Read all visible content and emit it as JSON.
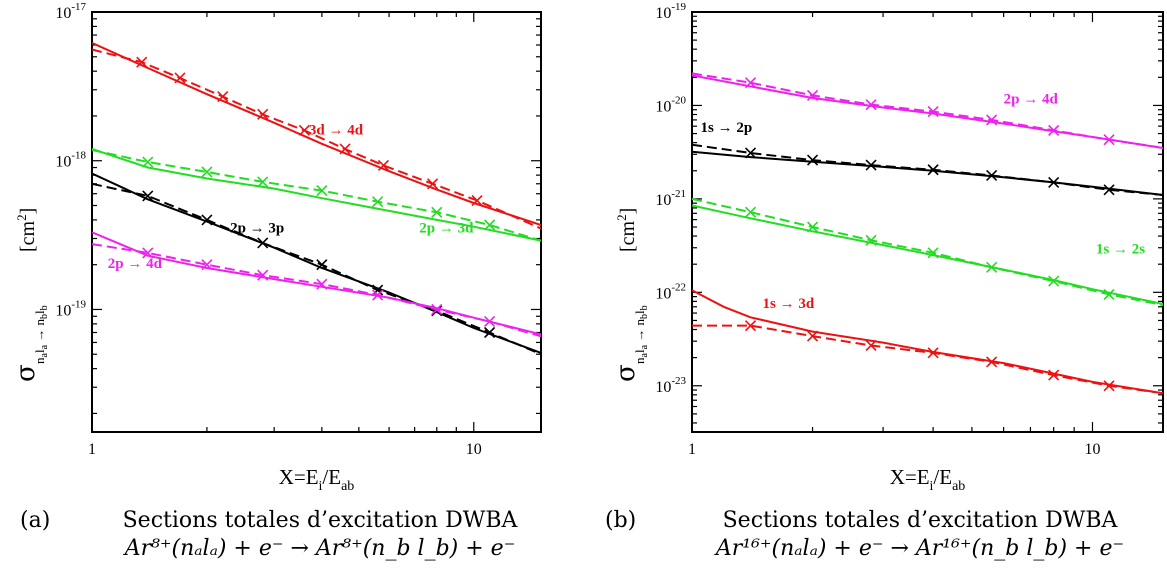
{
  "charts": [
    {
      "id": "a",
      "caption_letter": "(a)",
      "caption_line1": "Sections totales d’excitation DWBA",
      "caption_line2": "Ar⁸⁺(nₐlₐ) + e⁻ → Ar⁸⁺(n_b l_b) + e⁻",
      "xlabel_main": "X=E",
      "xlabel_sub1": "i",
      "xlabel_mid": "/E",
      "xlabel_sub2": "ab",
      "ylabel_sigma": "σ",
      "ylabel_sub": "n",
      "ylabel_unit": "[cm",
      "ylabel_unit_sup": "2",
      "ylabel_unit_end": "]",
      "x_tick_labels": [
        "1",
        "10"
      ],
      "y_tick_labels": [
        {
          "base": "10",
          "exp": "-17"
        },
        {
          "base": "10",
          "exp": "-18"
        },
        {
          "base": "10",
          "exp": "-19"
        }
      ]
    },
    {
      "id": "b",
      "caption_letter": "(b)",
      "caption_line1": "Sections totales d’excitation DWBA",
      "caption_line2": "Ar¹⁶⁺(nₐlₐ) + e⁻ → Ar¹⁶⁺(n_b l_b) + e⁻",
      "xlabel_main": "X=E",
      "xlabel_sub1": "i",
      "xlabel_mid": "/E",
      "xlabel_sub2": "ab",
      "ylabel_sigma": "σ",
      "ylabel_sub": "n",
      "ylabel_unit": "[cm",
      "ylabel_unit_sup": "2",
      "ylabel_unit_end": "]",
      "x_tick_labels": [
        "1",
        "10"
      ],
      "y_tick_labels": [
        {
          "base": "10",
          "exp": "-19"
        },
        {
          "base": "10",
          "exp": "-20"
        },
        {
          "base": "10",
          "exp": "-21"
        },
        {
          "base": "10",
          "exp": "-22"
        },
        {
          "base": "10",
          "exp": "-23"
        }
      ]
    }
  ],
  "colors": {
    "red": "#ee1111",
    "green": "#22dd22",
    "black": "#000000",
    "magenta": "#ee22ee"
  },
  "chart_data": [
    {
      "type": "line",
      "xscale": "log",
      "yscale": "log",
      "xlim": [
        1,
        15
      ],
      "ylim": [
        1.5e-20,
        1e-17
      ],
      "series": [
        {
          "name": "3d → 4d",
          "color": "red",
          "style": "solid",
          "x": [
            1,
            1.4,
            2,
            3,
            4,
            6,
            8,
            10,
            15
          ],
          "y": [
            6.2e-18,
            4.2e-18,
            2.8e-18,
            1.8e-18,
            1.3e-18,
            8.5e-19,
            6.4e-19,
            5.2e-19,
            3.7e-19
          ]
        },
        {
          "name": "3d → 4d",
          "color": "red",
          "style": "dashed",
          "x": [
            1,
            1.35,
            1.7,
            2.2,
            2.8,
            3.6,
            4.6,
            5.8,
            7.8,
            10.2,
            15
          ],
          "y": [
            5.6e-18,
            4.6e-18,
            3.6e-18,
            2.7e-18,
            2.05e-18,
            1.6e-18,
            1.2e-18,
            9.3e-19,
            7e-19,
            5.4e-19,
            3.5e-19
          ],
          "markers": true
        },
        {
          "name": "2p → 3d",
          "color": "green",
          "style": "solid",
          "x": [
            1,
            1.4,
            2,
            3,
            4,
            6,
            8,
            10,
            15
          ],
          "y": [
            1.2e-18,
            9e-19,
            7.6e-19,
            6.5e-19,
            5.6e-19,
            4.6e-19,
            4e-19,
            3.6e-19,
            2.9e-19
          ]
        },
        {
          "name": "2p → 3d",
          "color": "green",
          "style": "dashed",
          "x": [
            1,
            1.4,
            2,
            2.8,
            4,
            5.6,
            8,
            11,
            15
          ],
          "y": [
            1.18e-18,
            9.8e-19,
            8.4e-19,
            7.2e-19,
            6.3e-19,
            5.3e-19,
            4.5e-19,
            3.7e-19,
            2.9e-19
          ],
          "markers": true
        },
        {
          "name": "2p → 3p",
          "color": "black",
          "style": "solid",
          "x": [
            1,
            1.4,
            2,
            3,
            4,
            6,
            8,
            10,
            15
          ],
          "y": [
            8.2e-19,
            5.5e-19,
            3.9e-19,
            2.6e-19,
            1.9e-19,
            1.3e-19,
            9.6e-20,
            7.5e-20,
            5.1e-20
          ]
        },
        {
          "name": "2p → 3p",
          "color": "black",
          "style": "dashed",
          "x": [
            1,
            1.4,
            2,
            2.8,
            4,
            5.6,
            8,
            11,
            15
          ],
          "y": [
            7e-19,
            5.8e-19,
            4e-19,
            2.8e-19,
            2e-19,
            1.35e-19,
            9.8e-20,
            7e-20,
            5e-20
          ],
          "markers": true
        },
        {
          "name": "2p → 4d",
          "color": "magenta",
          "style": "solid",
          "x": [
            1,
            1.4,
            2,
            3,
            4,
            6,
            8,
            10,
            15
          ],
          "y": [
            3.3e-19,
            2.3e-19,
            1.9e-19,
            1.6e-19,
            1.42e-19,
            1.2e-19,
            1.02e-19,
            8.8e-20,
            6.8e-20
          ]
        },
        {
          "name": "2p → 4d",
          "color": "magenta",
          "style": "dashed",
          "x": [
            1,
            1.4,
            2,
            2.8,
            4,
            5.6,
            8,
            11,
            15
          ],
          "y": [
            2.75e-19,
            2.4e-19,
            2e-19,
            1.7e-19,
            1.48e-19,
            1.25e-19,
            1e-19,
            8.3e-20,
            6.6e-20
          ],
          "markers": true
        }
      ],
      "annotations": [
        {
          "text": "3d → 4d",
          "color": "red",
          "x": 3.7,
          "y": 1.5e-18
        },
        {
          "text": "2p → 3d",
          "color": "green",
          "x": 7.2,
          "y": 3.3e-19
        },
        {
          "text": "2p → 3p",
          "color": "black",
          "x": 2.3,
          "y": 3.3e-19
        },
        {
          "text": "2p → 4d",
          "color": "magenta",
          "x": 1.1,
          "y": 1.9e-19
        }
      ]
    },
    {
      "type": "line",
      "xscale": "log",
      "yscale": "log",
      "xlim": [
        1,
        15
      ],
      "ylim": [
        3.2e-24,
        1e-19
      ],
      "series": [
        {
          "name": "2p → 4d",
          "color": "magenta",
          "style": "solid",
          "x": [
            1,
            1.4,
            2,
            3,
            4,
            6,
            8,
            10,
            15
          ],
          "y": [
            2.1e-20,
            1.6e-20,
            1.2e-20,
            9.5e-21,
            8.2e-21,
            6.4e-21,
            5.3e-21,
            4.6e-21,
            3.5e-21
          ]
        },
        {
          "name": "2p → 4d",
          "color": "magenta",
          "style": "dashed",
          "x": [
            1,
            1.4,
            2,
            2.8,
            4,
            5.6,
            8,
            11,
            15
          ],
          "y": [
            2.2e-20,
            1.75e-20,
            1.28e-20,
            1.02e-20,
            8.6e-21,
            7e-21,
            5.4e-21,
            4.3e-21,
            3.5e-21
          ],
          "markers": true
        },
        {
          "name": "1s → 2p",
          "color": "black",
          "style": "solid",
          "x": [
            1,
            1.4,
            2,
            3,
            4,
            6,
            8,
            10,
            15
          ],
          "y": [
            3.2e-21,
            2.8e-21,
            2.5e-21,
            2.2e-21,
            2e-21,
            1.7e-21,
            1.5e-21,
            1.35e-21,
            1.1e-21
          ]
        },
        {
          "name": "1s → 2p",
          "color": "black",
          "style": "dashed",
          "x": [
            1,
            1.4,
            2,
            2.8,
            4,
            5.6,
            8,
            11,
            15
          ],
          "y": [
            3.8e-21,
            3.1e-21,
            2.6e-21,
            2.3e-21,
            2.05e-21,
            1.78e-21,
            1.5e-21,
            1.25e-21,
            1.1e-21
          ],
          "markers": true
        },
        {
          "name": "1s → 2s",
          "color": "green",
          "style": "solid",
          "x": [
            1,
            1.4,
            2,
            3,
            4,
            6,
            8,
            10,
            15
          ],
          "y": [
            8.5e-22,
            6.2e-22,
            4.5e-22,
            3.2e-22,
            2.5e-22,
            1.75e-22,
            1.35e-22,
            1.08e-22,
            7.5e-23
          ]
        },
        {
          "name": "1s → 2s",
          "color": "green",
          "style": "dashed",
          "x": [
            1,
            1.4,
            2,
            2.8,
            4,
            5.6,
            8,
            11,
            15
          ],
          "y": [
            1e-21,
            7.2e-22,
            5e-22,
            3.6e-22,
            2.65e-22,
            1.85e-22,
            1.32e-22,
            9.5e-23,
            7.3e-23
          ],
          "markers": true
        },
        {
          "name": "1s → 3d",
          "color": "red",
          "style": "solid",
          "x": [
            1,
            1.2,
            1.4,
            2,
            3,
            4,
            6,
            8,
            10,
            15
          ],
          "y": [
            1.05e-22,
            7e-23,
            5.4e-23,
            3.8e-23,
            2.9e-23,
            2.3e-23,
            1.75e-23,
            1.35e-23,
            1.1e-23,
            8.3e-24
          ]
        },
        {
          "name": "1s → 3d",
          "color": "red",
          "style": "dashed",
          "x": [
            1,
            1.4,
            2,
            2.8,
            4,
            5.6,
            8,
            11,
            15
          ],
          "y": [
            4.4e-23,
            4.4e-23,
            3.4e-23,
            2.7e-23,
            2.25e-23,
            1.8e-23,
            1.3e-23,
            1e-23,
            8.3e-24
          ],
          "markers": true
        }
      ],
      "annotations": [
        {
          "text": "2p → 4d",
          "color": "magenta",
          "x": 6.0,
          "y": 1.05e-20
        },
        {
          "text": "1s → 2p",
          "color": "black",
          "x": 1.05,
          "y": 5.2e-21
        },
        {
          "text": "1s → 2s",
          "color": "green",
          "x": 10.2,
          "y": 2.6e-22
        },
        {
          "text": "1s → 3d",
          "color": "red",
          "x": 1.5,
          "y": 6.8e-23
        }
      ]
    }
  ]
}
